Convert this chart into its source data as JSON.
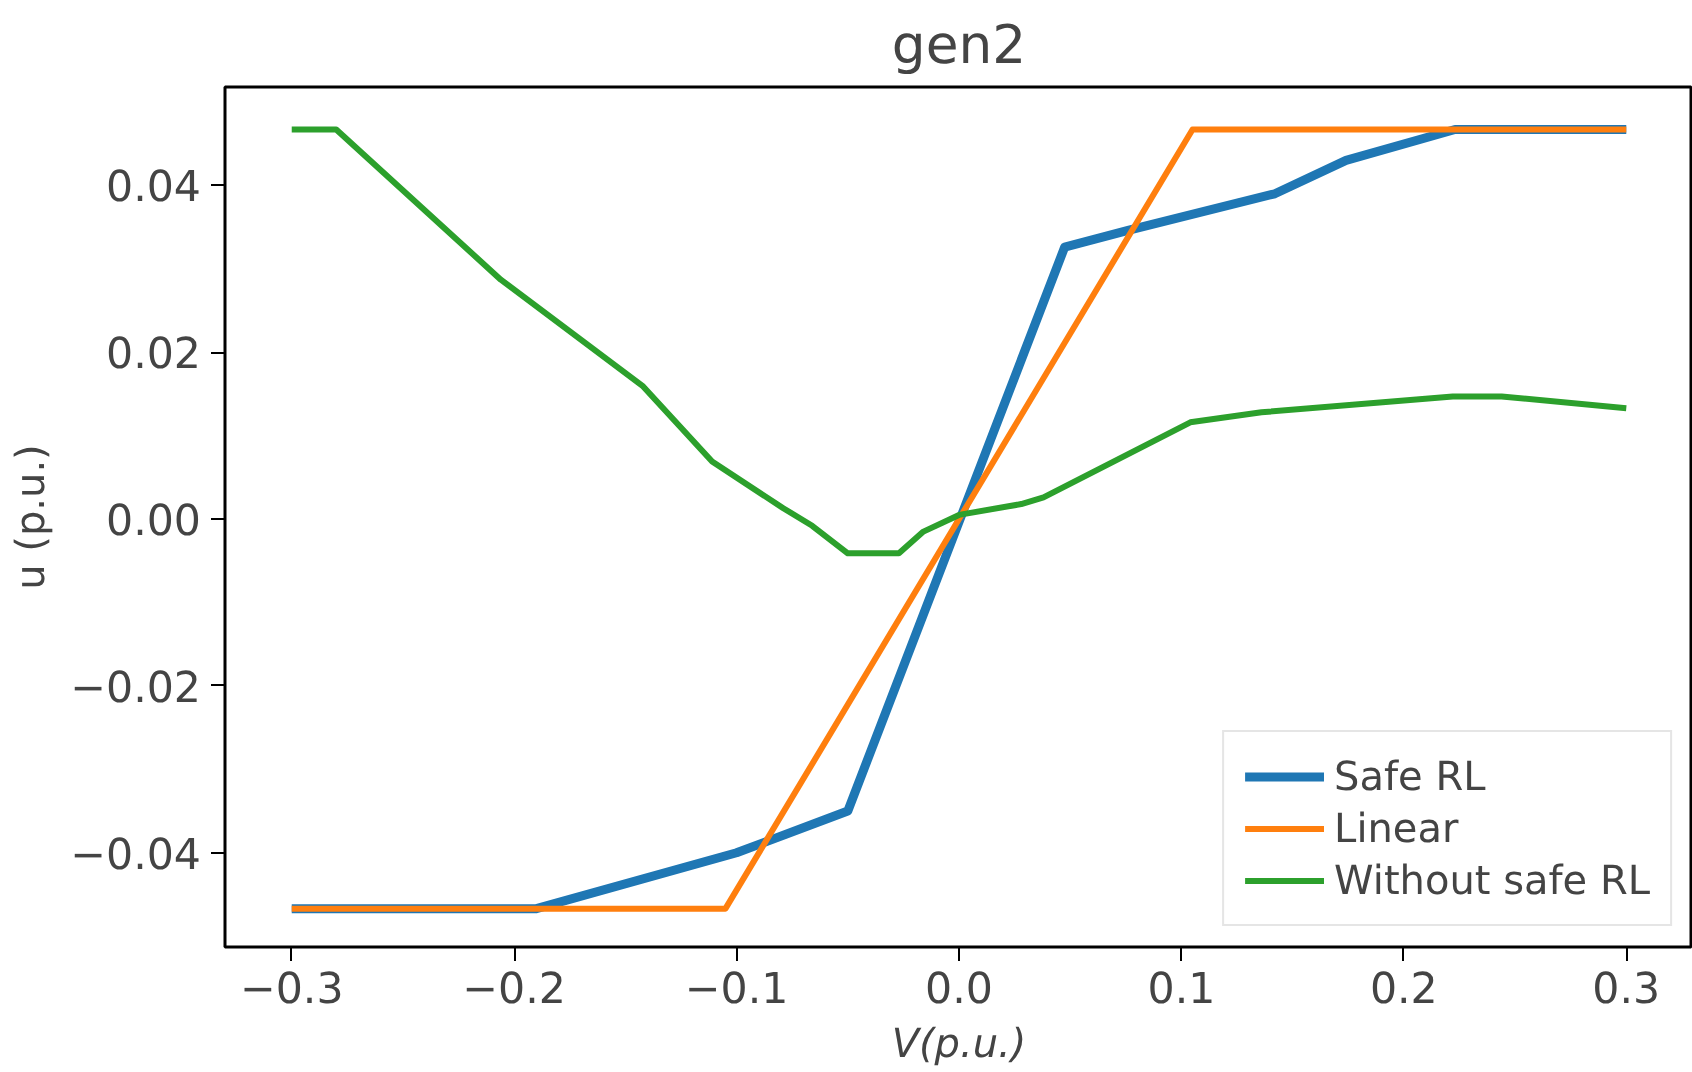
{
  "chart_data": {
    "type": "line",
    "title": "gen2",
    "xlabel": "V(p.u.)",
    "ylabel": "u (p.u.)",
    "xlim": [
      -0.33,
      0.33
    ],
    "ylim": [
      -0.0513,
      0.0518
    ],
    "xticks": [
      {
        "value": -0.3,
        "label": "−0.3"
      },
      {
        "value": -0.2,
        "label": "−0.2"
      },
      {
        "value": -0.1,
        "label": "−0.1"
      },
      {
        "value": 0,
        "label": "0.0"
      },
      {
        "value": 0.1,
        "label": "0.1"
      },
      {
        "value": 0.2,
        "label": "0.2"
      },
      {
        "value": 0.3,
        "label": "0.3"
      }
    ],
    "yticks": [
      {
        "value": -0.04,
        "label": "−0.04"
      },
      {
        "value": -0.02,
        "label": "−0.02"
      },
      {
        "value": 0,
        "label": "0.00"
      },
      {
        "value": 0.02,
        "label": "0.02"
      },
      {
        "value": 0.04,
        "label": "0.04"
      }
    ],
    "grid": false,
    "legend": "bottom right",
    "line_style": "solid",
    "series": [
      {
        "name": "Safe RL",
        "color": "#1f77b4",
        "x": [
          -0.3,
          -0.19,
          -0.1,
          -0.05,
          0.0475,
          0.076,
          0.142,
          0.174,
          0.223,
          0.3
        ],
        "values": [
          -0.0467,
          -0.0467,
          -0.04,
          -0.035,
          0.0326,
          0.0346,
          0.039,
          0.043,
          0.0467,
          0.0467
        ]
      },
      {
        "name": "Linear",
        "color": "#ff7f0e",
        "x": [
          -0.3,
          -0.105,
          0.105,
          0.3
        ],
        "values": [
          -0.0467,
          -0.0467,
          0.0467,
          0.0467
        ]
      },
      {
        "name": "Without safe RL",
        "color": "#2ca02c",
        "x": [
          -0.3,
          -0.28,
          -0.206,
          -0.142,
          -0.111,
          -0.079,
          -0.066,
          -0.05,
          -0.027,
          -0.016,
          0,
          0.028,
          0.038,
          0.104,
          0.136,
          0.222,
          0.244,
          0.3
        ],
        "values": [
          0.0467,
          0.0467,
          0.0287,
          0.0159,
          0.0069,
          0.0013,
          -0.0008,
          -0.0041,
          -0.0041,
          -0.0015,
          0.0005,
          0.0018,
          0.0026,
          0.0116,
          0.0128,
          0.0147,
          0.0147,
          0.0133
        ]
      }
    ]
  }
}
